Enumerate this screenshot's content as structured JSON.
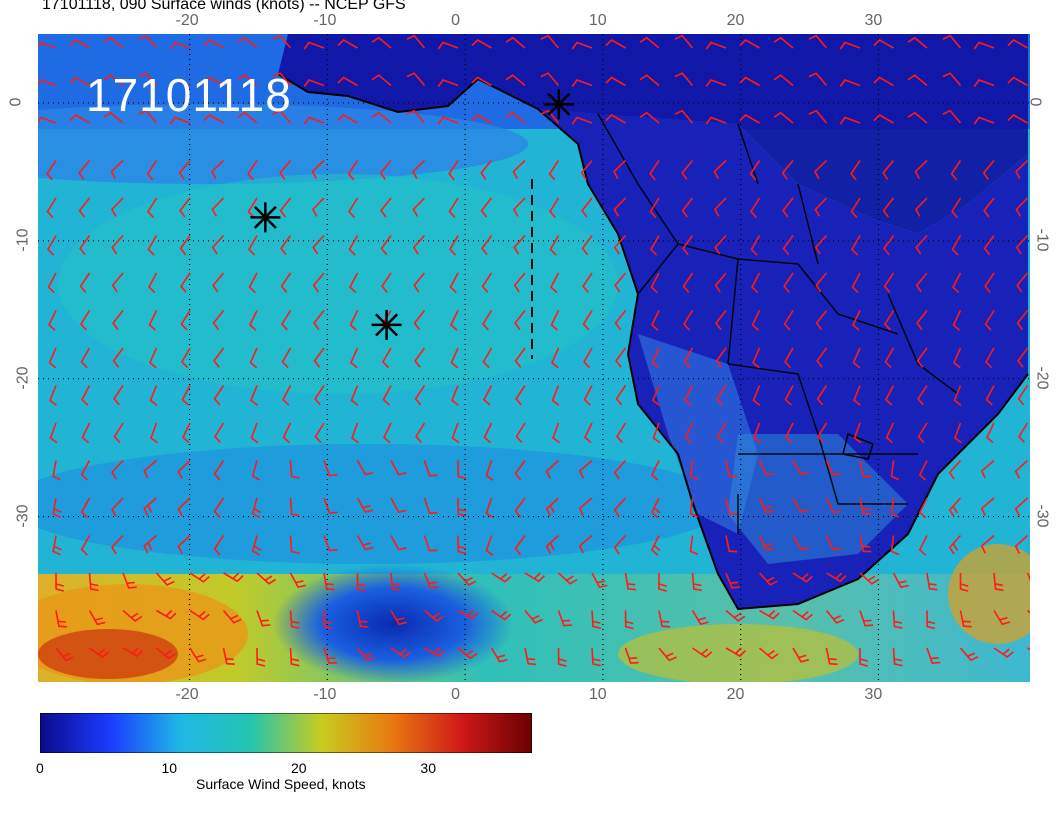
{
  "title": "17101118, 090 Surface winds (knots) -- NCEP GFS",
  "date_stamp": "17101118",
  "map": {
    "lon_range": [
      -31,
      41
    ],
    "lat_range": [
      -42,
      5
    ],
    "lon_ticks": [
      "-20",
      "-10",
      "0",
      "10",
      "20",
      "30"
    ],
    "lat_ticks": [
      "0",
      "-10",
      "-20",
      "-30"
    ],
    "lon_tick_values": [
      -20,
      -10,
      0,
      10,
      20,
      30
    ],
    "lat_tick_values": [
      0,
      -10,
      -20,
      -30
    ],
    "gridline_style": "dotted",
    "barb_color": "#ff1a1a",
    "coast_color": "#000000",
    "markers": [
      {
        "type": "asterisk",
        "lon": -14.5,
        "lat": -8.3
      },
      {
        "type": "asterisk",
        "lon": -5.7,
        "lat": -16.1
      },
      {
        "type": "asterisk",
        "lon": 6.8,
        "lat": -0.1
      }
    ]
  },
  "colorbar": {
    "title": "Surface Wind Speed, knots",
    "ticks": [
      "0",
      "10",
      "20",
      "30"
    ],
    "tick_values": [
      0,
      10,
      20,
      30
    ],
    "range": [
      0,
      38
    ],
    "colors": [
      "#0c0a8c",
      "#1a3cff",
      "#1fb8e6",
      "#24c4b0",
      "#c8cc20",
      "#e87a10",
      "#d01818",
      "#6a0000"
    ]
  }
}
